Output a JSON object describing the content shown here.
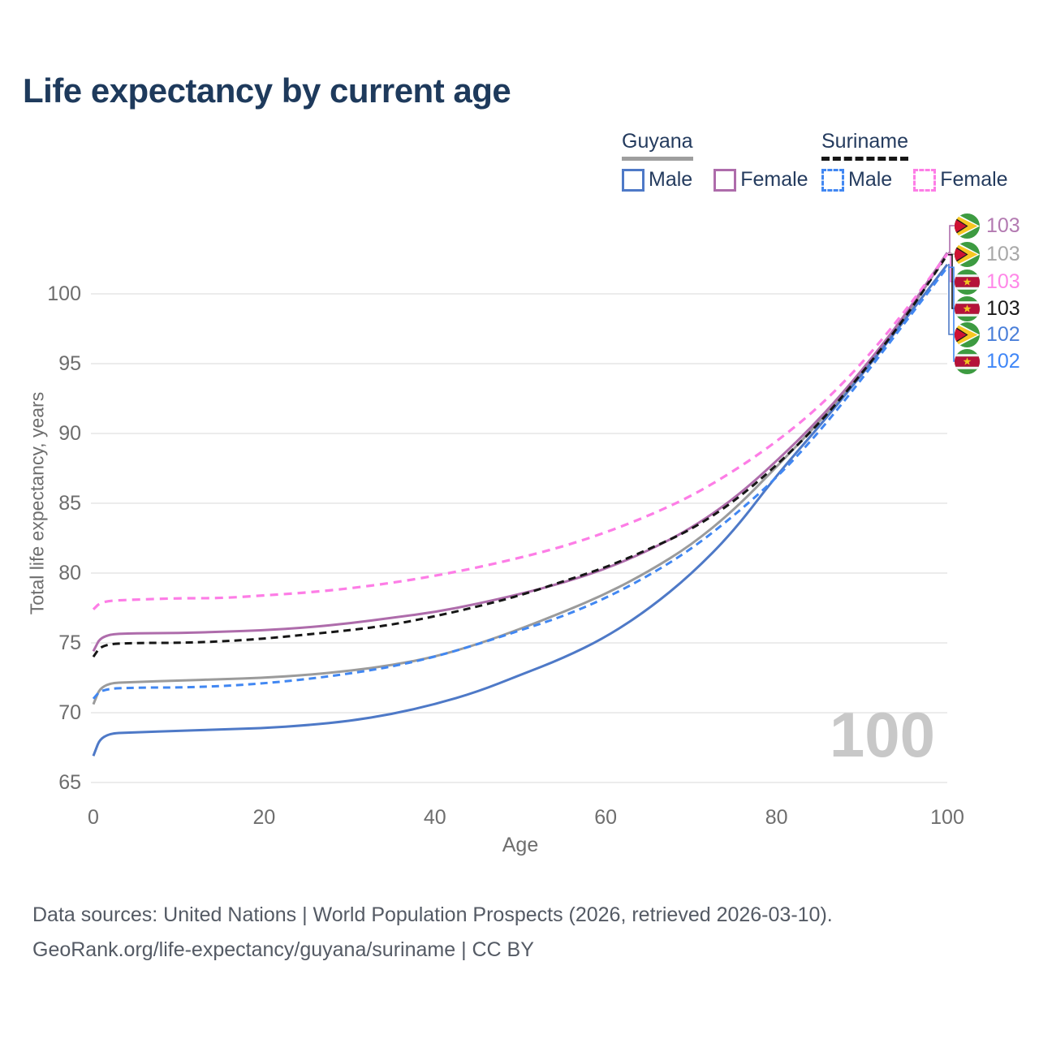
{
  "title": "Life expectancy by current age",
  "legend": {
    "groups": [
      {
        "country": "Guyana",
        "line_style": "solid",
        "underline_color": "#9e9e9e",
        "items": [
          {
            "label": "Male",
            "color": "#4e79c7",
            "dashed": false
          },
          {
            "label": "Female",
            "color": "#ae6cab",
            "dashed": false
          }
        ]
      },
      {
        "country": "Suriname",
        "line_style": "dashed",
        "underline_color": "#161616",
        "items": [
          {
            "label": "Male",
            "color": "#4187f2",
            "dashed": true
          },
          {
            "label": "Female",
            "color": "#fd7de6",
            "dashed": true
          }
        ]
      }
    ]
  },
  "chart_data": {
    "type": "line",
    "title": "Life expectancy by current age",
    "xlabel": "Age",
    "ylabel": "Total life expectancy, years",
    "xlim": [
      0,
      100
    ],
    "ylim": [
      63.5,
      104
    ],
    "xticks": [
      0,
      20,
      40,
      60,
      80,
      100
    ],
    "yticks": [
      65,
      70,
      75,
      80,
      85,
      90,
      95,
      100
    ],
    "grid": "horizontal",
    "legend_position": "top-right",
    "watermark": "100",
    "x": [
      0,
      1,
      5,
      10,
      15,
      20,
      25,
      30,
      35,
      40,
      45,
      50,
      55,
      60,
      65,
      70,
      75,
      80,
      85,
      90,
      95,
      100
    ],
    "series": [
      {
        "key": "guyana_all",
        "name": "Guyana (both sexes)",
        "country": "Guyana",
        "sex": "all",
        "color": "#9b9b9b",
        "dashed": false,
        "values": [
          70.6,
          72.1,
          72.2,
          72.3,
          72.4,
          72.5,
          72.7,
          73.0,
          73.4,
          74.0,
          74.9,
          76.0,
          77.2,
          78.5,
          80.1,
          82.0,
          84.5,
          87.6,
          90.8,
          94.4,
          98.2,
          102.9
        ]
      },
      {
        "key": "guyana_female",
        "name": "Guyana Female",
        "country": "Guyana",
        "sex": "female",
        "color": "#ae6cab",
        "dashed": false,
        "values": [
          74.4,
          75.6,
          75.7,
          75.7,
          75.8,
          75.9,
          76.1,
          76.4,
          76.8,
          77.2,
          77.8,
          78.5,
          79.3,
          80.3,
          81.6,
          83.2,
          85.3,
          88.0,
          91.0,
          94.5,
          98.4,
          102.95
        ]
      },
      {
        "key": "guyana_male",
        "name": "Guyana Male",
        "country": "Guyana",
        "sex": "male",
        "color": "#4e79c7",
        "dashed": false,
        "values": [
          66.9,
          68.5,
          68.6,
          68.7,
          68.8,
          68.9,
          69.1,
          69.4,
          69.9,
          70.6,
          71.5,
          72.7,
          73.9,
          75.4,
          77.4,
          79.9,
          83.0,
          87.0,
          90.5,
          94.2,
          98.1,
          102.1
        ]
      },
      {
        "key": "suriname_all",
        "name": "Suriname (both sexes)",
        "country": "Suriname",
        "sex": "all",
        "color": "#161616",
        "dashed": true,
        "values": [
          74.0,
          74.9,
          75.0,
          75.0,
          75.1,
          75.3,
          75.6,
          75.9,
          76.3,
          76.9,
          77.6,
          78.4,
          79.4,
          80.4,
          81.7,
          83.1,
          85.1,
          87.7,
          90.7,
          94.3,
          98.2,
          102.8
        ]
      },
      {
        "key": "suriname_male",
        "name": "Suriname Male",
        "country": "Suriname",
        "sex": "male",
        "color": "#4187f2",
        "dashed": true,
        "values": [
          71.0,
          71.7,
          71.8,
          71.8,
          71.9,
          72.1,
          72.4,
          72.8,
          73.3,
          74.0,
          74.9,
          75.9,
          76.9,
          78.2,
          79.8,
          81.7,
          84.1,
          86.8,
          90.1,
          93.9,
          97.9,
          101.9
        ]
      },
      {
        "key": "suriname_female",
        "name": "Suriname Female",
        "country": "Suriname",
        "sex": "female",
        "color": "#fd7de6",
        "dashed": true,
        "values": [
          77.4,
          78.0,
          78.1,
          78.2,
          78.2,
          78.4,
          78.6,
          78.9,
          79.3,
          79.8,
          80.4,
          81.1,
          81.9,
          82.9,
          84.1,
          85.5,
          87.3,
          89.4,
          91.9,
          95.0,
          98.7,
          102.85
        ]
      }
    ],
    "end_labels": [
      {
        "series_key": "guyana_female",
        "country": "Guyana",
        "value": "103",
        "color": "#b37ab1"
      },
      {
        "series_key": "guyana_all",
        "country": "Guyana",
        "value": "103",
        "color": "#a8a8a8"
      },
      {
        "series_key": "suriname_female",
        "country": "Suriname",
        "value": "103",
        "color": "#ff87e8"
      },
      {
        "series_key": "suriname_all",
        "country": "Suriname",
        "value": "103",
        "color": "#1a1a1a"
      },
      {
        "series_key": "guyana_male",
        "country": "Guyana",
        "value": "102",
        "color": "#4a7fd9"
      },
      {
        "series_key": "suriname_male",
        "country": "Suriname",
        "value": "102",
        "color": "#3f86f7"
      }
    ]
  },
  "footer": {
    "line1": "Data sources: United Nations | World Population Prospects (2026, retrieved 2026-03-10).",
    "line2": "GeoRank.org/life-expectancy/guyana/suriname | CC BY"
  }
}
